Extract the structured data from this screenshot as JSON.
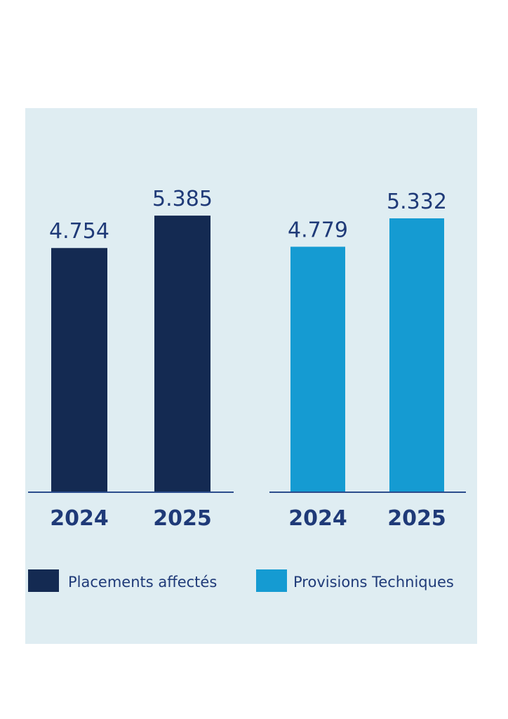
{
  "chart_data": {
    "type": "bar",
    "groups": [
      {
        "series": "Placements affectés",
        "color": "#142a52",
        "categories": [
          "2024",
          "2025"
        ],
        "values": [
          4.754,
          5.385
        ],
        "value_labels": [
          "4.754",
          "5.385"
        ]
      },
      {
        "series": "Provisions Techniques",
        "color": "#159bd2",
        "categories": [
          "2024",
          "2025"
        ],
        "values": [
          4.779,
          5.332
        ],
        "value_labels": [
          "4.779",
          "5.332"
        ]
      }
    ],
    "legend": {
      "position": "bottom-left",
      "items": [
        {
          "label": "Placements affectés",
          "color": "#142a52"
        },
        {
          "label": "Provisions Techniques",
          "color": "#159bd2"
        }
      ]
    },
    "grid": false,
    "text_color": "#1f3a78",
    "axis_color": "#2b4c8c",
    "panel_background": "#dfedf2"
  }
}
